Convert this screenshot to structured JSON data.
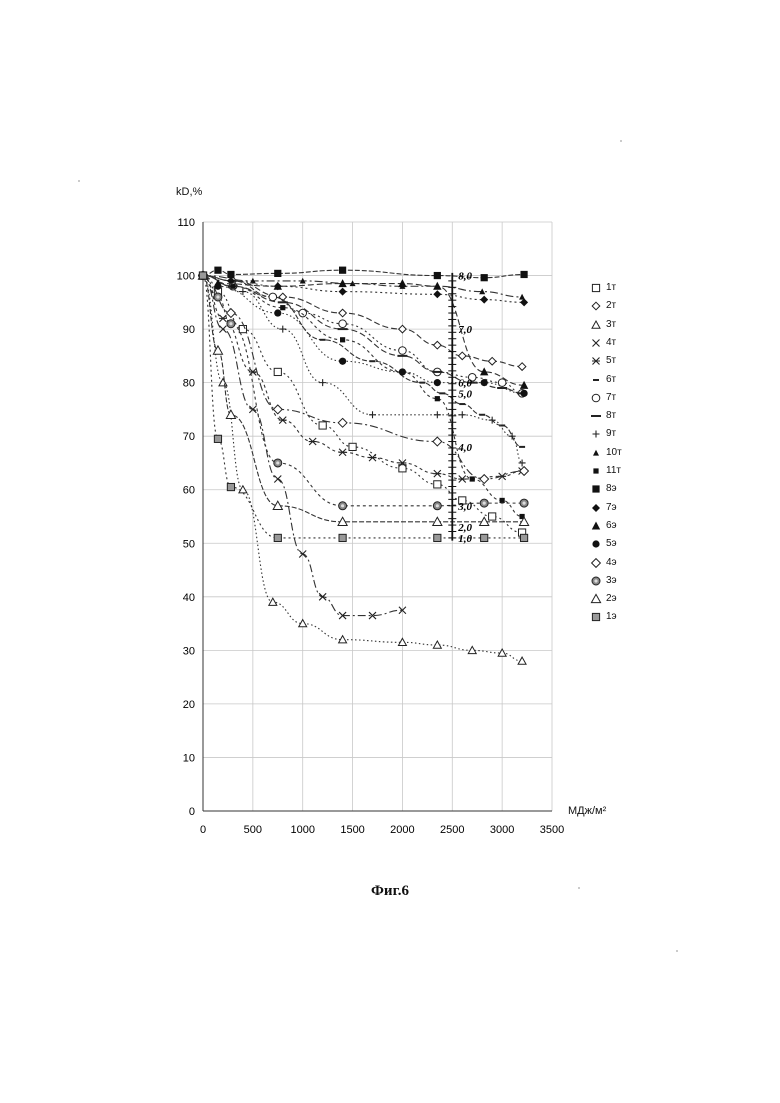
{
  "chart_data": {
    "type": "line",
    "ylabel": "kD,%",
    "xlabel": "МДж/м²",
    "caption": "Фиг.6",
    "xlim": [
      0,
      3500
    ],
    "ylim": [
      0,
      110
    ],
    "x_ticks": [
      "0",
      "500",
      "1000",
      "1500",
      "2000",
      "2500",
      "3000",
      "3500"
    ],
    "y_ticks": [
      "0",
      "10",
      "20",
      "30",
      "40",
      "50",
      "60",
      "70",
      "80",
      "90",
      "100",
      "110"
    ],
    "grid": true,
    "legend_position": "right",
    "inner_scale": {
      "x": 2500,
      "labels": [
        "8,0",
        "7,0",
        "6,0",
        "5,0",
        "4,0",
        "3,0",
        "2,0",
        "1,0"
      ],
      "label_y": [
        100,
        90,
        80,
        78,
        68,
        57,
        53,
        51
      ]
    },
    "series": [
      {
        "name": "1т",
        "marker": "square-open",
        "x": [
          0,
          150,
          400,
          750,
          1200,
          1500,
          2000,
          2350,
          2600,
          2900,
          3200
        ],
        "y": [
          100,
          97,
          90,
          82,
          72,
          68,
          64,
          61,
          58,
          55,
          52
        ]
      },
      {
        "name": "2т",
        "marker": "diamond-open",
        "x": [
          0,
          300,
          800,
          1400,
          2000,
          2350,
          2600,
          2900,
          3200
        ],
        "y": [
          100,
          99,
          96,
          93,
          90,
          87,
          85,
          84,
          83
        ]
      },
      {
        "name": "3т",
        "marker": "triangle-open",
        "x": [
          0,
          200,
          400,
          700,
          1000,
          1400,
          2000,
          2350,
          2700,
          3000,
          3200
        ],
        "y": [
          100,
          80,
          60,
          39,
          35,
          32,
          31.5,
          31,
          30,
          29.5,
          28
        ]
      },
      {
        "name": "4т",
        "marker": "x",
        "x": [
          0,
          200,
          500,
          750,
          1000,
          1200,
          1400,
          1700,
          2000
        ],
        "y": [
          100,
          90,
          75,
          62,
          48,
          40,
          36.5,
          36.5,
          37.5
        ]
      },
      {
        "name": "5т",
        "marker": "asterisk",
        "x": [
          0,
          200,
          500,
          800,
          1100,
          1400,
          1700,
          2000,
          2350,
          2600,
          3000,
          3200
        ],
        "y": [
          100,
          92,
          82,
          73,
          69,
          67,
          66,
          65,
          63,
          62,
          62.5,
          63.5
        ]
      },
      {
        "name": "6т",
        "marker": "dash-short",
        "x": [
          0,
          300,
          700,
          1200,
          1700,
          2200,
          2400,
          2600,
          2800,
          3000,
          3200
        ],
        "y": [
          100,
          99,
          96,
          88,
          84,
          80,
          78,
          76,
          74,
          72,
          68
        ]
      },
      {
        "name": "7т",
        "marker": "circle-open",
        "x": [
          0,
          300,
          700,
          1000,
          1400,
          2000,
          2350,
          2700,
          3000,
          3200
        ],
        "y": [
          100,
          98,
          96,
          93,
          91,
          86,
          82,
          81,
          80,
          78
        ]
      },
      {
        "name": "8т",
        "marker": "dash-long",
        "x": [
          0,
          300,
          800,
          1400,
          2000,
          2350,
          2700,
          3000,
          3200
        ],
        "y": [
          100,
          98,
          95,
          90,
          85,
          82,
          80,
          79,
          78
        ]
      },
      {
        "name": "9т",
        "marker": "plus",
        "x": [
          0,
          400,
          800,
          1200,
          1700,
          2350,
          2600,
          2900,
          3100,
          3200
        ],
        "y": [
          100,
          97,
          90,
          80,
          74,
          74,
          74,
          73,
          70,
          65
        ]
      },
      {
        "name": "10т",
        "marker": "triangle-filled-small",
        "x": [
          0,
          500,
          1000,
          1500,
          2000,
          2350,
          2800,
          3200
        ],
        "y": [
          100,
          99,
          99,
          98.5,
          98,
          98,
          97,
          96
        ]
      },
      {
        "name": "11т",
        "marker": "square-filled-small",
        "x": [
          0,
          300,
          800,
          1400,
          2000,
          2350,
          2700,
          3000,
          3200
        ],
        "y": [
          100,
          98,
          94,
          88,
          82,
          77,
          62,
          58,
          55
        ]
      },
      {
        "name": "8э",
        "marker": "square-filled",
        "x": [
          0,
          150,
          280,
          750,
          1400,
          2350,
          2820,
          3220
        ],
        "y": [
          100,
          101,
          100.2,
          100.4,
          101,
          100,
          99.6,
          100.2
        ]
      },
      {
        "name": "7э",
        "marker": "diamond-filled",
        "x": [
          280,
          750,
          1400,
          2350,
          2820,
          3220
        ],
        "y": [
          99,
          98,
          97,
          96.5,
          95.5,
          95
        ]
      },
      {
        "name": "6э",
        "marker": "triangle-filled",
        "x": [
          150,
          750,
          1400,
          2000,
          2350,
          2820,
          3220
        ],
        "y": [
          98.5,
          98,
          98.5,
          98.5,
          98,
          82,
          79.5
        ]
      },
      {
        "name": "5э",
        "marker": "circle-filled",
        "x": [
          150,
          750,
          1400,
          2000,
          2350,
          2820,
          3220
        ],
        "y": [
          98,
          93,
          84,
          82,
          80,
          80,
          78
        ]
      },
      {
        "name": "4э",
        "marker": "diamond-open-large",
        "x": [
          0,
          280,
          750,
          1400,
          2350,
          2820,
          3220
        ],
        "y": [
          100,
          93,
          75,
          72.5,
          69,
          62,
          63.5
        ]
      },
      {
        "name": "3э",
        "marker": "circle-ringed",
        "x": [
          0,
          150,
          280,
          750,
          1400,
          2350,
          2820,
          3220
        ],
        "y": [
          100,
          96,
          91,
          65,
          57,
          57,
          57.5,
          57.5
        ]
      },
      {
        "name": "2э",
        "marker": "triangle-open-large",
        "x": [
          0,
          150,
          280,
          750,
          1400,
          2350,
          2820,
          3220
        ],
        "y": [
          100,
          86,
          74,
          57,
          54,
          54,
          54,
          54
        ]
      },
      {
        "name": "1э",
        "marker": "square-gray",
        "x": [
          0,
          150,
          280,
          750,
          1400,
          2350,
          2820,
          3220
        ],
        "y": [
          100,
          69.5,
          60.5,
          51,
          51,
          51,
          51,
          51
        ]
      }
    ]
  }
}
